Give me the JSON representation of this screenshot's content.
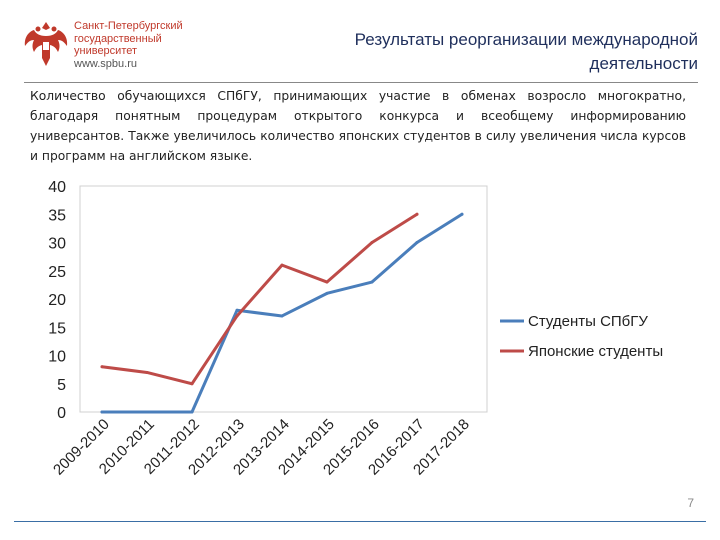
{
  "header": {
    "university_lines": [
      "Санкт-Петербургский",
      "государственный",
      "университет"
    ],
    "university_url": "www.spbu.ru",
    "title": "Результаты реорганизации международной деятельности"
  },
  "intro_text": "Количество обучающихся СПбГУ, принимающих участие в обменах возросло многократно, благодаря понятным процедурам открытого конкурса и всеобщему информированию универсантов. Также увеличилось количество японских студентов в силу увеличения числа курсов и программ на английском языке.",
  "page_number": "7",
  "colors": {
    "series1": "#4a7ebb",
    "series2": "#be4b48",
    "logo": "#c0392b",
    "title": "#1f2f5c"
  },
  "icons": {
    "logo": "double-headed-eagle-emblem-icon"
  },
  "chart_data": {
    "type": "line",
    "title": "",
    "xlabel": "",
    "ylabel": "",
    "categories": [
      "2009-2010",
      "2010-2011",
      "2011-2012",
      "2012-2013",
      "2013-2014",
      "2014-2015",
      "2015-2016",
      "2016-2017",
      "2017-2018"
    ],
    "ylim": [
      0,
      40
    ],
    "yticks": [
      0,
      5,
      10,
      15,
      20,
      25,
      30,
      35,
      40
    ],
    "grid": false,
    "legend": "right",
    "series": [
      {
        "name": "Студенты СПбГУ",
        "color": "#4a7ebb",
        "values": [
          0,
          0,
          0,
          18,
          17,
          21,
          23,
          30,
          35
        ]
      },
      {
        "name": "Японские студенты",
        "color": "#be4b48",
        "values": [
          8,
          7,
          5,
          17,
          26,
          23,
          30,
          35,
          null
        ]
      }
    ]
  }
}
